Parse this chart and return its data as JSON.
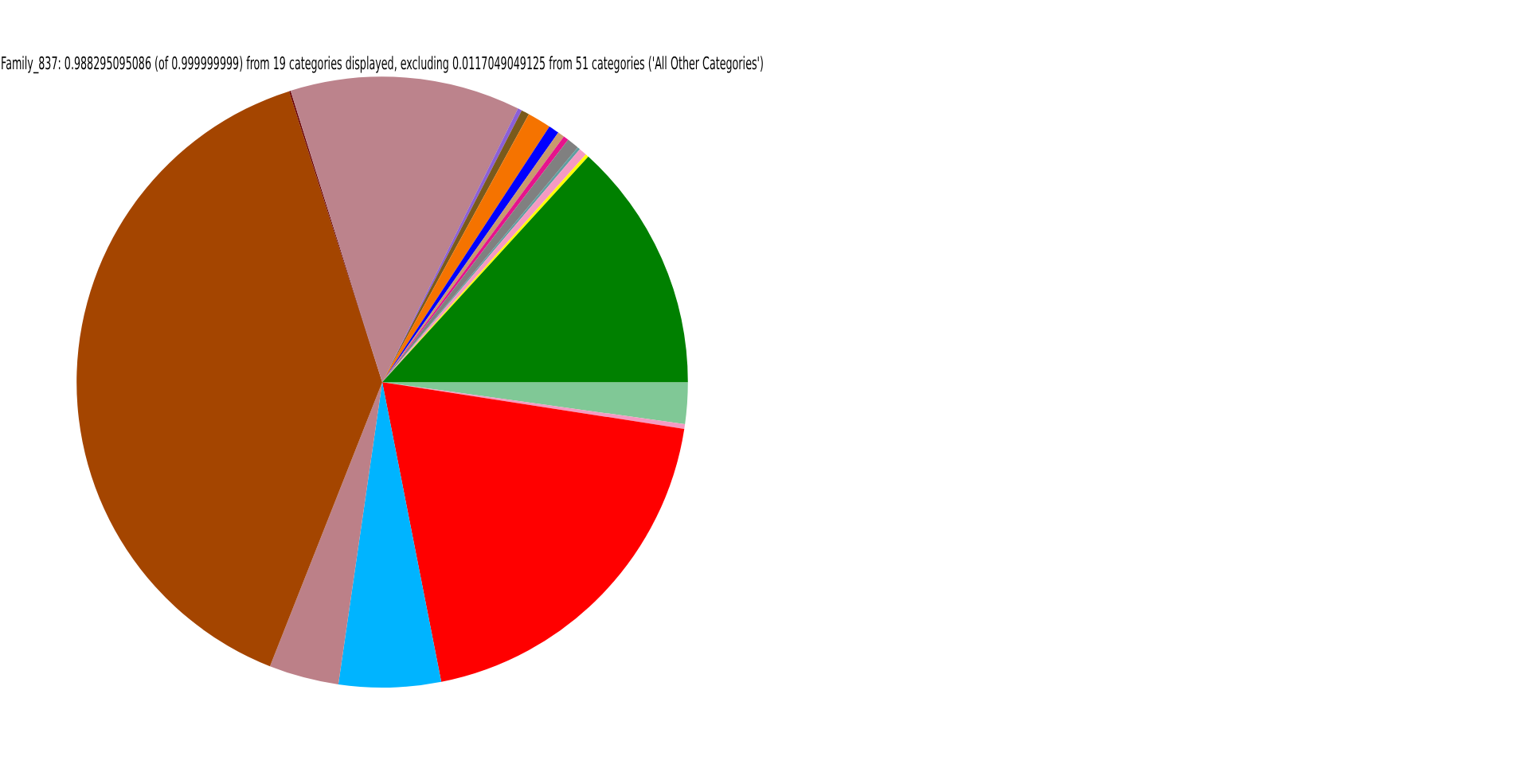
{
  "chart_data": {
    "type": "pie",
    "title": "Family_837: 0.988295095086 (of 0.999999999) from 19 categories displayed, excluding 0.0117049049125 from 51 categories ('All Other Categories')",
    "categories": [
      null,
      null,
      null,
      null,
      null,
      null,
      null,
      null,
      null,
      null,
      null,
      null,
      null,
      null,
      null,
      null,
      null,
      null,
      null
    ],
    "values": [
      2.2,
      0.25,
      19.5,
      5.4,
      3.7,
      39.16,
      0.08,
      12.2,
      0.22,
      0.42,
      1.25,
      0.56,
      0.36,
      0.28,
      0.64,
      0.14,
      0.42,
      0.17,
      13.25
    ],
    "colors": [
      "#80c896",
      "#f49ac2",
      "#ff0000",
      "#00b4ff",
      "#bc8088",
      "#a44500",
      "#6b0000",
      "#bc838c",
      "#8a5fd8",
      "#7a5a1c",
      "#f57300",
      "#0000ff",
      "#c89a6e",
      "#e6148c",
      "#808080",
      "#5f9ea0",
      "#f49ac2",
      "#ffff00",
      "#008000"
    ],
    "legend": false
  }
}
